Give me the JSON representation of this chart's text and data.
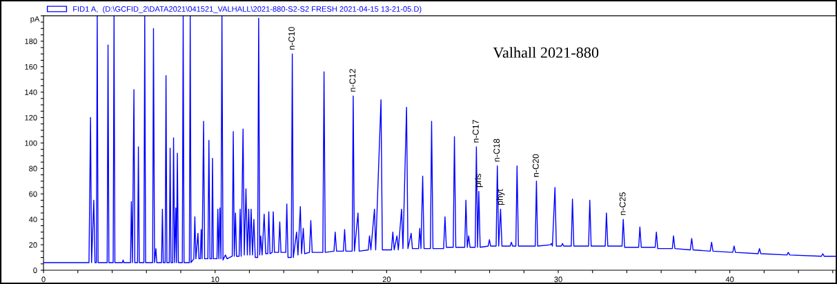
{
  "chart_data": {
    "type": "line",
    "title": "Valhall 2021-880",
    "ylabel": "pA",
    "x": [
      0,
      2.65,
      2.74,
      2.8,
      2.93,
      3.0,
      3.08,
      3.13,
      3.18,
      3.71,
      3.76,
      3.81,
      4.06,
      4.11,
      4.16,
      4.6,
      4.64,
      4.68,
      5.07,
      5.12,
      5.18,
      5.27,
      5.32,
      5.48,
      5.53,
      5.58,
      5.85,
      5.9,
      5.95,
      6.36,
      6.41,
      6.47,
      6.55,
      6.6,
      6.88,
      6.93,
      6.98,
      7.09,
      7.14,
      7.19,
      7.33,
      7.38,
      7.43,
      7.53,
      7.58,
      7.64,
      7.71,
      7.75,
      7.8,
      7.86,
      8.09,
      8.14,
      8.19,
      8.5,
      8.55,
      8.6,
      8.76,
      8.82,
      8.88,
      9.0,
      9.06,
      9.14,
      9.19,
      9.24,
      9.33,
      9.39,
      9.58,
      9.64,
      9.7,
      9.8,
      9.85,
      9.9,
      10.11,
      10.16,
      10.22,
      10.28,
      10.34,
      10.4,
      10.46,
      10.6,
      10.7,
      11.0,
      11.06,
      11.12,
      11.19,
      11.25,
      11.4,
      11.46,
      11.52,
      11.63,
      11.7,
      11.8,
      11.88,
      11.96,
      12.03,
      12.1,
      12.18,
      12.26,
      12.34,
      12.48,
      12.54,
      12.6,
      12.66,
      12.74,
      12.86,
      12.95,
      13.07,
      13.13,
      13.2,
      13.33,
      13.39,
      13.46,
      13.7,
      13.77,
      13.84,
      14.12,
      14.18,
      14.25,
      14.44,
      14.5,
      14.56,
      14.75,
      14.83,
      14.97,
      15.04,
      15.14,
      15.22,
      15.5,
      15.58,
      15.66,
      16.28,
      16.35,
      16.42,
      16.93,
      17.0,
      17.08,
      17.48,
      17.55,
      17.62,
      17.99,
      18.05,
      18.12,
      18.33,
      18.4,
      18.93,
      19.0,
      19.08,
      19.29,
      19.36,
      19.67,
      19.75,
      20.28,
      20.36,
      20.44,
      20.6,
      20.68,
      20.87,
      20.95,
      21.16,
      21.24,
      21.43,
      21.5,
      21.86,
      21.93,
      22.0,
      22.1,
      22.18,
      22.55,
      22.62,
      22.7,
      23.32,
      23.4,
      23.48,
      23.88,
      23.95,
      24.03,
      24.55,
      24.62,
      24.7,
      24.78,
      24.86,
      25.16,
      25.23,
      25.3,
      25.37,
      25.45,
      25.92,
      25.99,
      26.06,
      26.38,
      26.45,
      26.53,
      26.64,
      26.72,
      27.2,
      27.27,
      27.34,
      27.53,
      27.6,
      27.68,
      28.66,
      28.73,
      28.8,
      29.53,
      29.6,
      29.66,
      29.81,
      29.89,
      30.18,
      30.25,
      30.32,
      30.76,
      30.83,
      30.91,
      31.77,
      31.84,
      31.92,
      32.74,
      32.81,
      32.89,
      33.72,
      33.79,
      33.87,
      34.69,
      34.76,
      34.84,
      35.65,
      35.72,
      35.8,
      36.65,
      36.72,
      36.8,
      37.7,
      37.78,
      37.86,
      38.86,
      38.94,
      39.02,
      40.17,
      40.25,
      40.33,
      41.65,
      41.73,
      41.81,
      43.33,
      43.41,
      43.49,
      45.34,
      45.42,
      45.5,
      46.2
    ],
    "series": [
      {
        "name": "FID1 A,  (D:\\GCFID_2\\DATA2021\\041521_VALHALL\\2021-880-S2-S2 FRESH 2021-04-15 13-21-05.D)",
        "color": "#0000ff",
        "values": [
          6,
          6,
          120,
          6,
          55,
          6,
          6,
          200,
          6,
          6,
          177,
          6,
          6,
          200,
          6,
          6,
          8,
          6,
          6,
          54,
          6,
          142,
          6,
          6,
          97,
          6,
          6,
          200,
          6,
          6,
          190,
          6,
          17,
          6,
          6,
          48,
          6,
          6,
          153,
          6,
          6,
          96,
          6,
          6,
          104,
          6,
          49,
          6,
          92,
          6,
          6,
          200,
          6,
          6,
          200,
          6,
          9,
          42,
          9,
          29,
          9,
          9,
          32,
          9,
          117,
          9,
          9,
          102,
          9,
          9,
          88,
          9,
          9,
          48,
          9,
          49,
          9,
          200,
          8,
          12,
          9,
          11,
          109,
          11,
          45,
          11,
          11,
          48,
          11,
          111,
          12,
          64,
          12,
          48,
          12,
          48,
          12,
          40,
          10,
          10,
          198,
          12,
          27,
          12,
          44,
          13,
          13,
          46,
          13,
          14,
          46,
          14,
          14,
          38,
          14,
          14,
          52,
          10,
          10,
          170,
          10,
          30,
          12,
          50,
          13,
          33,
          13,
          14,
          39,
          14,
          14,
          156,
          14,
          15,
          30,
          15,
          15,
          32,
          15,
          15,
          137,
          15,
          45,
          15,
          16,
          27,
          16,
          48,
          16,
          134,
          16,
          16,
          30,
          16,
          27,
          16,
          48,
          17,
          128,
          17,
          29,
          17,
          17,
          33,
          17,
          74,
          17,
          17,
          117,
          17,
          17,
          42,
          18,
          18,
          105,
          18,
          18,
          55,
          18,
          27,
          18,
          18,
          97,
          18,
          62,
          18,
          19,
          24,
          19,
          19,
          82,
          19,
          48,
          19,
          19,
          22,
          19,
          19,
          82,
          19,
          19,
          70,
          19,
          20,
          21,
          19,
          65,
          19,
          19,
          21,
          19,
          19,
          56,
          19,
          19,
          55,
          19,
          19,
          45,
          19,
          19,
          40,
          18,
          18,
          34,
          18,
          18,
          30,
          17,
          17,
          27,
          17,
          16,
          25,
          16,
          15,
          22,
          15,
          14,
          19,
          14,
          13,
          17,
          13,
          12,
          14,
          12,
          11,
          13,
          11,
          11
        ]
      }
    ],
    "xlim": [
      0,
      46.2
    ],
    "xticks": [
      0,
      {
        "value": 2,
        "label": null
      },
      {
        "value": 4,
        "label": null
      },
      {
        "value": 6,
        "label": null
      },
      {
        "value": 8,
        "label": null
      },
      10,
      {
        "value": 12,
        "label": null
      },
      {
        "value": 14,
        "label": null
      },
      {
        "value": 16,
        "label": null
      },
      {
        "value": 18,
        "label": null
      },
      20,
      {
        "value": 22,
        "label": null
      },
      {
        "value": 24,
        "label": null
      },
      {
        "value": 26,
        "label": null
      },
      {
        "value": 28,
        "label": null
      },
      30,
      {
        "value": 32,
        "label": null
      },
      {
        "value": 34,
        "label": null
      },
      {
        "value": 36,
        "label": null
      },
      {
        "value": 38,
        "label": null
      },
      40,
      {
        "value": 42,
        "label": null
      },
      {
        "value": 44,
        "label": null
      },
      {
        "value": 46,
        "label": null
      }
    ],
    "ylim": [
      0,
      200
    ],
    "yticks": [
      0,
      {
        "value": 5,
        "label": null
      },
      {
        "value": 10,
        "label": null
      },
      {
        "value": 15,
        "label": null
      },
      20,
      {
        "value": 25,
        "label": null
      },
      {
        "value": 30,
        "label": null
      },
      {
        "value": 35,
        "label": null
      },
      40,
      {
        "value": 45,
        "label": null
      },
      {
        "value": 50,
        "label": null
      },
      {
        "value": 55,
        "label": null
      },
      60,
      {
        "value": 65,
        "label": null
      },
      {
        "value": 70,
        "label": null
      },
      {
        "value": 75,
        "label": null
      },
      80,
      {
        "value": 85,
        "label": null
      },
      {
        "value": 90,
        "label": null
      },
      {
        "value": 95,
        "label": null
      },
      100,
      {
        "value": 105,
        "label": null
      },
      {
        "value": 110,
        "label": null
      },
      {
        "value": 115,
        "label": null
      },
      120,
      {
        "value": 125,
        "label": null
      },
      {
        "value": 130,
        "label": null
      },
      {
        "value": 135,
        "label": null
      },
      140,
      {
        "value": 145,
        "label": null
      },
      {
        "value": 150,
        "label": null
      },
      {
        "value": 155,
        "label": null
      },
      160,
      {
        "value": 165,
        "label": null
      },
      {
        "value": 170,
        "label": null
      },
      {
        "value": 175,
        "label": null
      },
      180,
      {
        "value": 185,
        "label": null
      },
      {
        "value": 190,
        "label": null
      },
      {
        "value": 195,
        "label": null
      },
      {
        "value": 200,
        "label": null
      }
    ],
    "annotations": [
      {
        "text": "n-C10",
        "x": 14.5,
        "y": 170
      },
      {
        "text": "n-C12",
        "x": 18.05,
        "y": 137
      },
      {
        "text": "n-C17",
        "x": 25.23,
        "y": 97
      },
      {
        "text": "pris",
        "x": 25.37,
        "y": 62
      },
      {
        "text": "n-C18",
        "x": 26.45,
        "y": 82
      },
      {
        "text": "phyt",
        "x": 26.64,
        "y": 48
      },
      {
        "text": "n-C20",
        "x": 28.73,
        "y": 70
      },
      {
        "text": "n-C25",
        "x": 33.79,
        "y": 40
      }
    ],
    "legend": "top left",
    "grid": false,
    "marker": "none",
    "line_style": "solid"
  }
}
